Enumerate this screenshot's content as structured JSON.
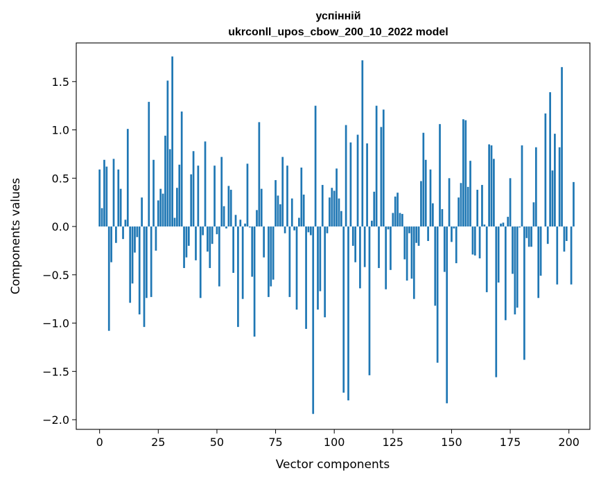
{
  "chart_data": {
    "type": "bar",
    "title_line1": "успінній",
    "title_line2": "ukrconll_upos_cbow_200_10_2022 model",
    "xlabel": "Vector components",
    "ylabel": "Components values",
    "xlim": [
      -9.95,
      208.95
    ],
    "ylim": [
      -2.1,
      1.9
    ],
    "xticks": [
      0,
      25,
      50,
      75,
      100,
      125,
      150,
      175,
      200
    ],
    "xtick_labels": [
      "0",
      "25",
      "50",
      "75",
      "100",
      "125",
      "150",
      "175",
      "200"
    ],
    "yticks": [
      -2.0,
      -1.5,
      -1.0,
      -0.5,
      0.0,
      0.5,
      1.0,
      1.5
    ],
    "ytick_labels": [
      "−2.0",
      "−1.5",
      "−1.0",
      "−0.5",
      "0.0",
      "0.5",
      "1.0",
      "1.5"
    ],
    "bar_color": "#1f77b4",
    "grid": false,
    "values": [
      0.59,
      0.19,
      0.69,
      0.62,
      -1.08,
      -0.37,
      0.7,
      -0.17,
      0.59,
      0.39,
      -0.13,
      0.07,
      1.01,
      -0.79,
      -0.59,
      -0.27,
      -0.11,
      -0.91,
      0.3,
      -1.04,
      -0.74,
      1.29,
      -0.73,
      0.69,
      -0.25,
      0.27,
      0.39,
      0.34,
      0.94,
      1.51,
      0.8,
      1.76,
      0.09,
      0.4,
      0.64,
      1.19,
      -0.43,
      -0.32,
      -0.2,
      0.54,
      0.78,
      -0.35,
      0.63,
      -0.74,
      -0.09,
      0.88,
      -0.26,
      -0.43,
      -0.18,
      0.63,
      -0.08,
      -0.62,
      0.72,
      0.21,
      -0.02,
      0.42,
      0.38,
      -0.48,
      0.12,
      -1.04,
      0.07,
      -0.75,
      0.03,
      0.65,
      -0.01,
      -0.52,
      -1.14,
      0.17,
      1.08,
      0.39,
      -0.32,
      0.0,
      -0.73,
      -0.62,
      -0.55,
      0.48,
      0.32,
      0.23,
      0.72,
      -0.07,
      0.63,
      -0.73,
      0.29,
      -0.04,
      -0.86,
      0.09,
      0.61,
      0.33,
      -1.06,
      -0.06,
      -0.09,
      -1.94,
      1.25,
      -0.86,
      -0.67,
      0.43,
      -0.94,
      -0.07,
      0.3,
      0.4,
      0.37,
      0.6,
      0.29,
      0.16,
      -1.72,
      1.05,
      -1.8,
      0.87,
      -0.2,
      -0.37,
      0.95,
      -0.64,
      1.72,
      -0.42,
      0.86,
      -1.54,
      0.06,
      0.36,
      1.25,
      -0.43,
      1.03,
      1.21,
      -0.65,
      -0.03,
      -0.45,
      0.14,
      0.31,
      0.35,
      0.14,
      0.13,
      -0.34,
      -0.56,
      -0.07,
      -0.54,
      -0.75,
      -0.17,
      -0.2,
      0.47,
      0.97,
      0.69,
      -0.15,
      0.59,
      0.24,
      -0.82,
      -1.41,
      1.06,
      0.18,
      -0.47,
      -1.83,
      0.5,
      -0.16,
      -0.02,
      -0.38,
      0.3,
      0.45,
      1.11,
      1.1,
      0.41,
      0.68,
      -0.29,
      -0.3,
      0.38,
      -0.33,
      0.43,
      0.02,
      -0.68,
      0.85,
      0.84,
      0.7,
      -1.56,
      -0.58,
      0.03,
      0.04,
      -0.97,
      0.1,
      0.5,
      -0.49,
      -0.91,
      -0.84,
      -0.01,
      0.84,
      -1.38,
      -0.12,
      -0.21,
      -0.21,
      0.25,
      0.82,
      -0.74,
      -0.51,
      0.0,
      1.17,
      -0.18,
      1.39,
      0.58,
      0.96,
      -0.6,
      0.82,
      1.65,
      -0.26,
      -0.15,
      0.0,
      -0.6,
      0.46
    ]
  }
}
